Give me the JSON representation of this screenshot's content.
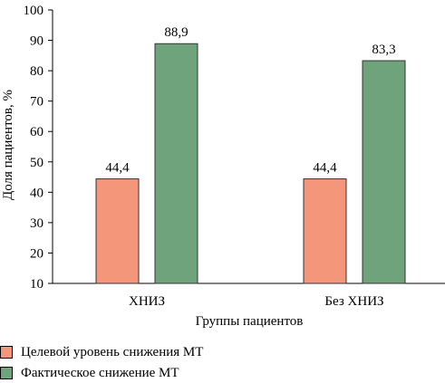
{
  "chart_data": {
    "type": "bar",
    "categories": [
      "ХНИЗ",
      "Без ХНИЗ"
    ],
    "series": [
      {
        "name": "Целевой уровень снижения МТ",
        "values": [
          44.4,
          44.4
        ],
        "labels": [
          "44,4",
          "44,4"
        ],
        "color": "#f4967a"
      },
      {
        "name": "Фактическое снижение МТ",
        "values": [
          88.9,
          83.3
        ],
        "labels": [
          "88,9",
          "83,3"
        ],
        "color": "#6fa37c"
      }
    ],
    "xlabel": "Группы пациентов",
    "ylabel": "Доля пациентов, %",
    "ylim": [
      10,
      100
    ],
    "yticks": [
      10,
      20,
      30,
      40,
      50,
      60,
      70,
      80,
      90,
      100
    ],
    "grid": false,
    "legend": "bottom-left"
  }
}
